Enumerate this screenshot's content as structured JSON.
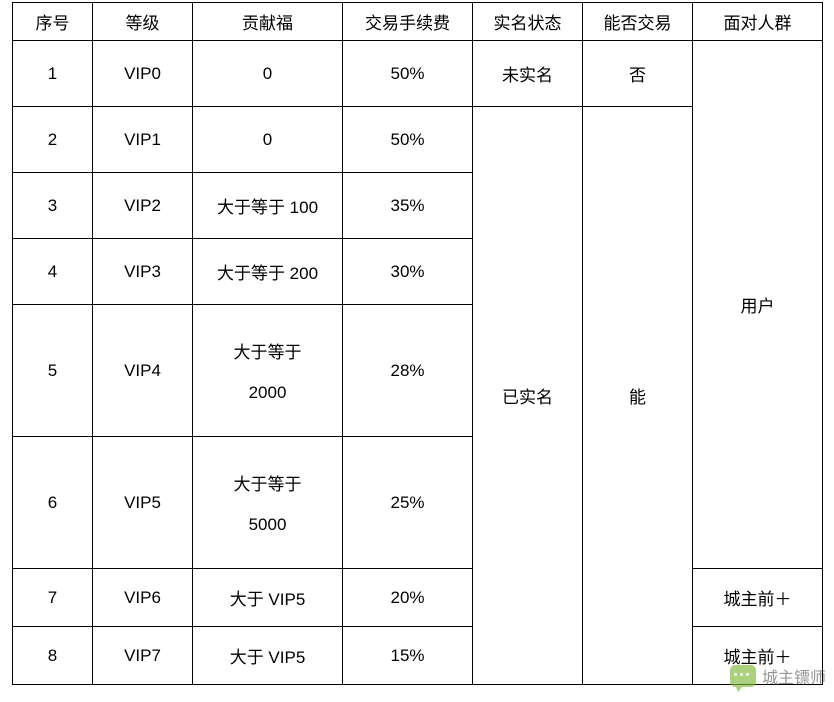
{
  "table": {
    "columns": [
      {
        "label": "序号",
        "width": 80
      },
      {
        "label": "等级",
        "width": 100
      },
      {
        "label": "贡献福",
        "width": 150
      },
      {
        "label": "交易手续费",
        "width": 130
      },
      {
        "label": "实名状态",
        "width": 110
      },
      {
        "label": "能否交易",
        "width": 110
      },
      {
        "label": "面对人群",
        "width": 130
      }
    ],
    "rows": [
      {
        "num": "1",
        "level": "VIP0",
        "contrib": "0",
        "fee": "50%",
        "height": "row-std"
      },
      {
        "num": "2",
        "level": "VIP1",
        "contrib": "0",
        "fee": "50%",
        "height": "row-std"
      },
      {
        "num": "3",
        "level": "VIP2",
        "contrib": "大于等于 100",
        "fee": "35%",
        "height": "row-std"
      },
      {
        "num": "4",
        "level": "VIP3",
        "contrib": "大于等于 200",
        "fee": "30%",
        "height": "row-std"
      },
      {
        "num": "5",
        "level": "VIP4",
        "contrib": "大于等于\n2000",
        "fee": "28%",
        "height": "row-tall"
      },
      {
        "num": "6",
        "level": "VIP5",
        "contrib": "大于等于\n5000",
        "fee": "25%",
        "height": "row-tall"
      },
      {
        "num": "7",
        "level": "VIP6",
        "contrib": "大于 VIP5",
        "fee": "20%",
        "height": "row-short"
      },
      {
        "num": "8",
        "level": "VIP7",
        "contrib": "大于 VIP5",
        "fee": "15%",
        "height": "row-short"
      }
    ],
    "merged": {
      "realname_row1": "未实名",
      "trade_row1": "否",
      "realname_rest": "已实名",
      "trade_rest": "能",
      "audience_top": "用户",
      "audience_row7": "城主前＋",
      "audience_row8": "城主前＋"
    }
  },
  "watermark": {
    "text": "城主镖师"
  },
  "style": {
    "border_color": "#000000",
    "background": "#ffffff",
    "font_size": 17,
    "wm_green": "#7fb93a"
  }
}
